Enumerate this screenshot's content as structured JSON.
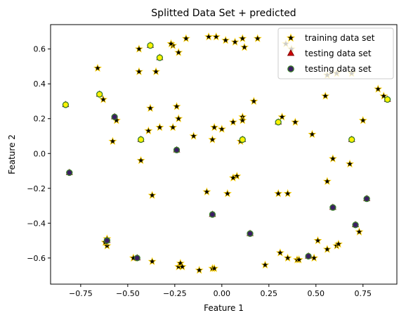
{
  "chart_data": {
    "type": "scatter",
    "title": "Splitted Data Set + predicted",
    "xlabel": "Feature 1",
    "ylabel": "Feature 2",
    "xlim": [
      -0.91,
      0.93
    ],
    "ylim": [
      -0.75,
      0.74
    ],
    "grid": false,
    "legend_position": "top-right",
    "x_ticks": [
      -0.75,
      -0.5,
      -0.25,
      0.0,
      0.25,
      0.5,
      0.75
    ],
    "x_tick_labels": [
      "−0.75",
      "−0.50",
      "−0.25",
      "0.00",
      "0.25",
      "0.50",
      "0.75"
    ],
    "y_ticks": [
      -0.6,
      -0.4,
      -0.2,
      0.0,
      0.2,
      0.4,
      0.6
    ],
    "y_tick_labels": [
      "−0.6",
      "−0.4",
      "−0.2",
      "0.0",
      "0.2",
      "0.4",
      "0.6"
    ],
    "series": [
      {
        "name": "training data set",
        "marker": "star",
        "color": "#000000",
        "edgecolor": "#ffd000",
        "points": [
          [
            -0.03,
            0.67
          ],
          [
            -0.07,
            0.67
          ],
          [
            0.02,
            0.65
          ],
          [
            0.07,
            0.64
          ],
          [
            0.11,
            0.66
          ],
          [
            0.12,
            0.61
          ],
          [
            0.19,
            0.66
          ],
          [
            -0.19,
            0.66
          ],
          [
            -0.26,
            0.62
          ],
          [
            -0.23,
            0.58
          ],
          [
            -0.27,
            0.63
          ],
          [
            -0.44,
            0.6
          ],
          [
            -0.44,
            0.47
          ],
          [
            -0.35,
            0.47
          ],
          [
            -0.66,
            0.49
          ],
          [
            -0.63,
            0.31
          ],
          [
            -0.24,
            0.27
          ],
          [
            -0.38,
            0.26
          ],
          [
            -0.56,
            0.19
          ],
          [
            -0.23,
            0.2
          ],
          [
            -0.26,
            0.15
          ],
          [
            -0.33,
            0.15
          ],
          [
            -0.39,
            0.13
          ],
          [
            -0.58,
            0.07
          ],
          [
            -0.15,
            0.1
          ],
          [
            -0.05,
            0.08
          ],
          [
            -0.04,
            0.15
          ],
          [
            0.0,
            0.14
          ],
          [
            0.06,
            0.18
          ],
          [
            0.11,
            0.21
          ],
          [
            0.11,
            0.19
          ],
          [
            0.17,
            0.3
          ],
          [
            0.32,
            0.21
          ],
          [
            0.39,
            0.18
          ],
          [
            0.48,
            0.11
          ],
          [
            0.1,
            0.07
          ],
          [
            -0.43,
            -0.04
          ],
          [
            0.08,
            -0.13
          ],
          [
            0.06,
            -0.14
          ],
          [
            0.03,
            -0.23
          ],
          [
            -0.08,
            -0.22
          ],
          [
            -0.37,
            -0.24
          ],
          [
            0.3,
            -0.23
          ],
          [
            0.35,
            -0.23
          ],
          [
            0.56,
            -0.16
          ],
          [
            0.59,
            -0.03
          ],
          [
            0.68,
            -0.06
          ],
          [
            0.75,
            0.19
          ],
          [
            0.83,
            0.37
          ],
          [
            0.86,
            0.33
          ],
          [
            0.55,
            0.33
          ],
          [
            0.56,
            0.45
          ],
          [
            0.34,
            0.63
          ],
          [
            0.37,
            0.6
          ],
          [
            0.69,
            0.46
          ],
          [
            0.61,
            0.46
          ],
          [
            -0.61,
            -0.49
          ],
          [
            -0.61,
            -0.53
          ],
          [
            -0.62,
            -0.51
          ],
          [
            -0.47,
            -0.6
          ],
          [
            -0.37,
            -0.62
          ],
          [
            -0.23,
            -0.65
          ],
          [
            -0.22,
            -0.63
          ],
          [
            -0.21,
            -0.65
          ],
          [
            -0.12,
            -0.67
          ],
          [
            -0.05,
            -0.66
          ],
          [
            -0.04,
            -0.66
          ],
          [
            0.23,
            -0.64
          ],
          [
            0.31,
            -0.57
          ],
          [
            0.35,
            -0.6
          ],
          [
            0.4,
            -0.61
          ],
          [
            0.41,
            -0.61
          ],
          [
            0.49,
            -0.6
          ],
          [
            0.51,
            -0.5
          ],
          [
            0.56,
            -0.55
          ],
          [
            0.61,
            -0.53
          ],
          [
            0.62,
            -0.52
          ],
          [
            0.73,
            -0.45
          ]
        ]
      },
      {
        "name": "testing data set",
        "marker": "triangle",
        "color": "#d00000",
        "edgecolor": "#800000",
        "points": [
          [
            -0.83,
            0.28
          ],
          [
            -0.65,
            0.34
          ],
          [
            -0.57,
            0.21
          ],
          [
            -0.38,
            0.62
          ],
          [
            -0.33,
            0.55
          ],
          [
            -0.43,
            0.08
          ],
          [
            -0.24,
            0.02
          ],
          [
            0.11,
            0.08
          ],
          [
            0.3,
            0.18
          ],
          [
            0.69,
            0.08
          ],
          [
            0.88,
            0.31
          ],
          [
            -0.81,
            -0.11
          ],
          [
            -0.05,
            -0.35
          ],
          [
            0.15,
            -0.46
          ],
          [
            0.59,
            -0.31
          ],
          [
            0.77,
            -0.26
          ],
          [
            0.71,
            -0.41
          ],
          [
            -0.61,
            -0.5
          ],
          [
            -0.45,
            -0.6
          ],
          [
            0.46,
            -0.59
          ]
        ]
      },
      {
        "name": "testing data set",
        "marker": "circle",
        "color": "#3b1e63",
        "edgecolor": "#3a7d2a",
        "points": [
          [
            0.71,
            -0.41
          ],
          [
            0.59,
            -0.31
          ],
          [
            0.77,
            -0.26
          ],
          [
            0.15,
            -0.46
          ],
          [
            -0.05,
            -0.35
          ],
          [
            -0.81,
            -0.11
          ],
          [
            -0.61,
            -0.5
          ],
          [
            -0.45,
            -0.6
          ],
          [
            0.46,
            -0.59
          ],
          [
            -0.57,
            0.21
          ],
          [
            -0.24,
            0.02
          ]
        ]
      },
      {
        "name": "",
        "marker": "circle",
        "color": "#fff200",
        "edgecolor": "#3a7d2a",
        "points": [
          [
            -0.83,
            0.28
          ],
          [
            -0.65,
            0.34
          ],
          [
            -0.38,
            0.62
          ],
          [
            -0.33,
            0.55
          ],
          [
            -0.43,
            0.08
          ],
          [
            0.11,
            0.08
          ],
          [
            0.3,
            0.18
          ],
          [
            0.69,
            0.08
          ],
          [
            0.88,
            0.31
          ]
        ]
      }
    ]
  }
}
